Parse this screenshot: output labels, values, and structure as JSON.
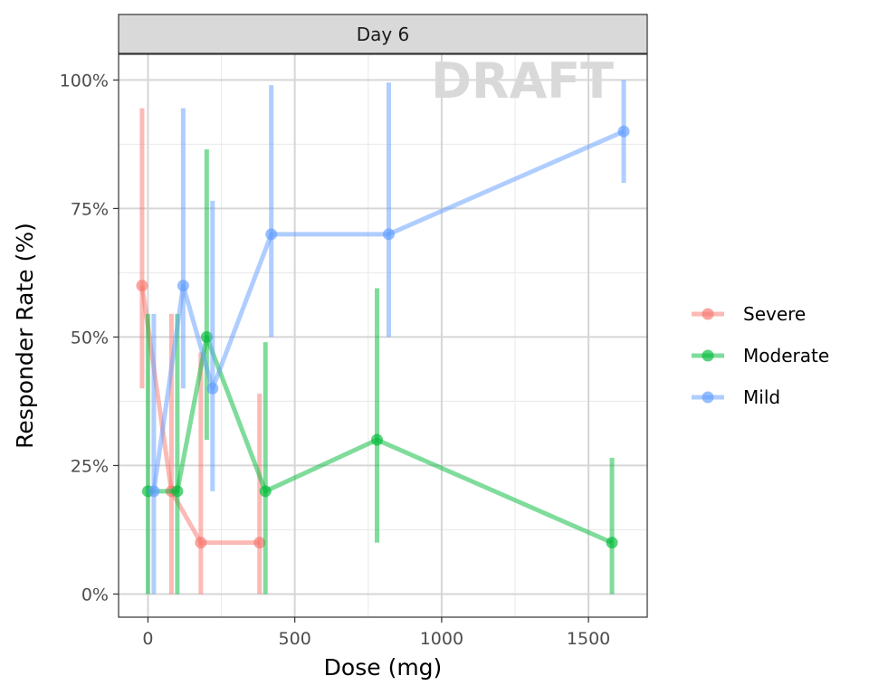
{
  "chart_data": {
    "type": "line",
    "facet_label": "Day 6",
    "watermark": "DRAFT",
    "xlabel": "Dose (mg)",
    "ylabel": "Responder Rate (%)",
    "xlim": [
      -100,
      1700
    ],
    "ylim": [
      -4.5,
      105
    ],
    "x_ticks": [
      0,
      500,
      1000,
      1500
    ],
    "x_tick_labels": [
      "0",
      "500",
      "1000",
      "1500"
    ],
    "y_ticks": [
      0,
      25,
      50,
      75,
      100
    ],
    "y_tick_labels": [
      "0%",
      "25%",
      "50%",
      "75%",
      "100%"
    ],
    "grid": true,
    "legend_position": "right",
    "series": [
      {
        "name": "Severe",
        "color": "#F8766D",
        "x": [
          -20,
          80,
          180,
          380
        ],
        "y": [
          60,
          20,
          10,
          10
        ],
        "lower": [
          40,
          0,
          0,
          0
        ],
        "upper": [
          94.5,
          54.5,
          47,
          39
        ]
      },
      {
        "name": "Moderate",
        "color": "#00BA38",
        "x": [
          0,
          100,
          200,
          400,
          780,
          1580
        ],
        "y": [
          20,
          20,
          50,
          20,
          30,
          10
        ],
        "lower": [
          0,
          0,
          30,
          0,
          10,
          0
        ],
        "upper": [
          54.5,
          54.5,
          86.5,
          49,
          59.5,
          26.5
        ]
      },
      {
        "name": "Mild",
        "color": "#619CFF",
        "x": [
          20,
          120,
          220,
          420,
          820,
          1620
        ],
        "y": [
          20,
          60,
          40,
          70,
          70,
          90
        ],
        "lower": [
          0,
          40,
          20,
          50,
          50,
          80
        ],
        "upper": [
          54.5,
          94.5,
          76.5,
          99,
          99.5,
          100
        ]
      }
    ]
  }
}
